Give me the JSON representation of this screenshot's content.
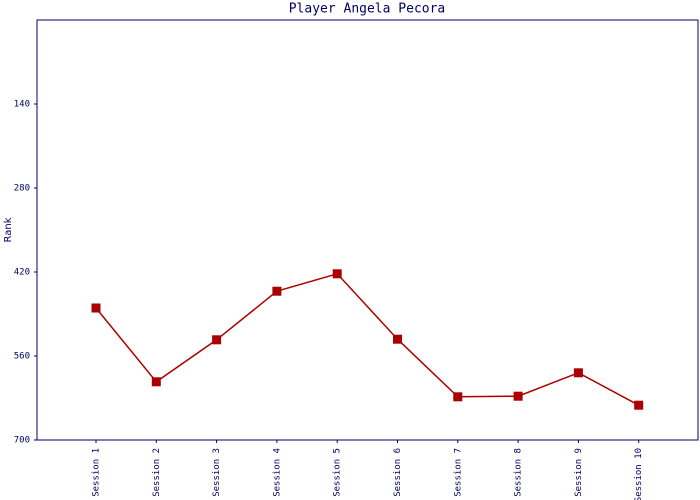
{
  "chart_data": {
    "type": "line",
    "title": "Player Angela Pecora",
    "y_label": "Rank",
    "categories": [
      "Session 1",
      "Session 2",
      "Session 3",
      "Session 4",
      "Session 5",
      "Session 6",
      "Session 7",
      "Session 8",
      "Session 9",
      "Session 10"
    ],
    "series": [
      {
        "name": "Rank",
        "color": "#aa0000",
        "values": [
          480,
          603,
          533,
          452,
          423,
          532,
          628,
          627,
          588,
          642
        ]
      }
    ],
    "ylim": [
      700,
      0
    ],
    "yticks": [
      140,
      280,
      420,
      560,
      700
    ],
    "grid": false
  }
}
